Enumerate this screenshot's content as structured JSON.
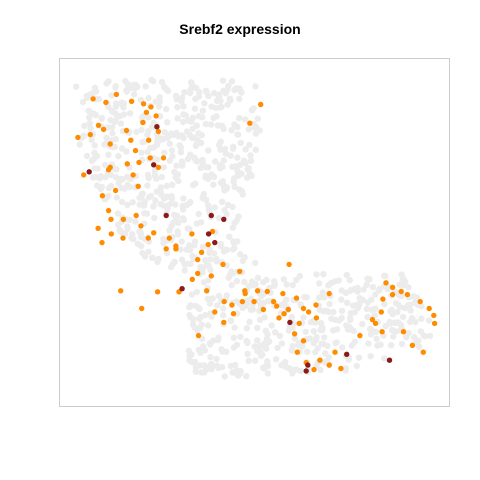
{
  "chart_data": {
    "type": "scatter",
    "title": "Srebf2 expression",
    "xlabel": "",
    "ylabel": "",
    "axes_visible": false,
    "xlim": [
      0,
      100
    ],
    "ylim": [
      0,
      100
    ],
    "grid": false,
    "legend": "none",
    "colors": {
      "background_cell": "#ececec",
      "expressed": "#ff8c00",
      "high": "#8b1a1a",
      "frame": "#cccccc"
    },
    "background_seed": 20240611,
    "background_count": 950,
    "background_regions": [
      [
        [
          3,
          94
        ],
        [
          50,
          94
        ],
        [
          52,
          83
        ],
        [
          46,
          46
        ],
        [
          53,
          38
        ],
        [
          88,
          38
        ],
        [
          96,
          28
        ],
        [
          95,
          18
        ],
        [
          75,
          10
        ],
        [
          40,
          8
        ],
        [
          33,
          10
        ],
        [
          33,
          38
        ],
        [
          22,
          42
        ],
        [
          13,
          52
        ],
        [
          5,
          74
        ]
      ]
    ],
    "series": [
      {
        "level": "expressed",
        "points": [
          [
            8.5,
            88.5
          ],
          [
            11.8,
            87.5
          ],
          [
            9.9,
            80.9
          ],
          [
            7.8,
            78.2
          ],
          [
            4.6,
            77.4
          ],
          [
            11.2,
            79.7
          ],
          [
            14.5,
            89.8
          ],
          [
            18.4,
            87.8
          ],
          [
            21.5,
            87.1
          ],
          [
            23.4,
            86.2
          ],
          [
            22.2,
            84.6
          ],
          [
            24.7,
            83.6
          ],
          [
            21.3,
            81.7
          ],
          [
            25.3,
            79.1
          ],
          [
            22.8,
            76.6
          ],
          [
            17.1,
            79.4
          ],
          [
            18.2,
            76.6
          ],
          [
            19.4,
            73.6
          ],
          [
            20.3,
            70.2
          ],
          [
            17.3,
            69.8
          ],
          [
            23.2,
            71.5
          ],
          [
            26.6,
            71.5
          ],
          [
            25.3,
            68.8
          ],
          [
            18.8,
            66.6
          ],
          [
            12.9,
            68.8
          ],
          [
            6.1,
            66.6
          ],
          [
            12.5,
            68.1
          ],
          [
            20.1,
            63.3
          ],
          [
            14.3,
            62.1
          ],
          [
            10.9,
            60.6
          ],
          [
            12.5,
            56.3
          ],
          [
            13.1,
            53.8
          ],
          [
            16.3,
            53.8
          ],
          [
            19.6,
            54.9
          ],
          [
            20.8,
            51.9
          ],
          [
            16.2,
            48.4
          ],
          [
            9.8,
            51.2
          ],
          [
            13.2,
            49.6
          ],
          [
            10.8,
            47.1
          ],
          [
            22.7,
            48.4
          ],
          [
            24.1,
            49.9
          ],
          [
            27.3,
            45.3
          ],
          [
            29.8,
            46.1
          ],
          [
            28.1,
            48.4
          ],
          [
            29.8,
            45.3
          ],
          [
            33.9,
            49.6
          ],
          [
            39.2,
            50.3
          ],
          [
            38.1,
            46.5
          ],
          [
            36.4,
            44.3
          ],
          [
            35.4,
            42.2
          ],
          [
            35.4,
            38.2
          ],
          [
            41.9,
            40.8
          ],
          [
            38.9,
            37.5
          ],
          [
            34.0,
            36.5
          ],
          [
            30.6,
            32.9
          ],
          [
            37.7,
            33.2
          ],
          [
            39.8,
            27.1
          ],
          [
            42.2,
            30.1
          ],
          [
            44.2,
            29.1
          ],
          [
            46.9,
            30.1
          ],
          [
            47.5,
            33.2
          ],
          [
            46.2,
            38.8
          ],
          [
            50.8,
            33.2
          ],
          [
            49.9,
            30.1
          ],
          [
            53.3,
            33.0
          ],
          [
            54.9,
            30.1
          ],
          [
            55.7,
            28.8
          ],
          [
            57.6,
            26.6
          ],
          [
            58.7,
            27.8
          ],
          [
            56.3,
            25.4
          ],
          [
            60.8,
            31.1
          ],
          [
            57.3,
            32.4
          ],
          [
            62.6,
            28.1
          ],
          [
            63.9,
            27.1
          ],
          [
            65.8,
            29.1
          ],
          [
            65.9,
            25.4
          ],
          [
            61.5,
            23.8
          ],
          [
            60.3,
            20.8
          ],
          [
            62.6,
            18.8
          ],
          [
            61.0,
            15.5
          ],
          [
            63.3,
            12.5
          ],
          [
            65.3,
            10.5
          ],
          [
            66.8,
            13.2
          ],
          [
            70.7,
            15.5
          ],
          [
            69.2,
            11.8
          ],
          [
            72.2,
            10.8
          ],
          [
            77.1,
            20.3
          ],
          [
            82.8,
            21.4
          ],
          [
            81.1,
            23.8
          ],
          [
            80.3,
            24.9
          ],
          [
            82.6,
            27.1
          ],
          [
            83.0,
            30.8
          ],
          [
            85.5,
            32.1
          ],
          [
            83.8,
            35.5
          ],
          [
            85.5,
            34.2
          ],
          [
            87.7,
            33.0
          ],
          [
            89.3,
            32.1
          ],
          [
            92.6,
            30.1
          ],
          [
            94.9,
            28.1
          ],
          [
            96.1,
            26.1
          ],
          [
            96.3,
            23.8
          ],
          [
            88.3,
            21.4
          ],
          [
            90.6,
            17.5
          ],
          [
            93.4,
            15.5
          ],
          [
            69.2,
            32.4
          ],
          [
            58.9,
            40.8
          ],
          [
            47.6,
            32.4
          ],
          [
            52.3,
            27.8
          ],
          [
            44.6,
            26.6
          ],
          [
            42.1,
            24.1
          ],
          [
            35.6,
            20.3
          ],
          [
            25.1,
            32.9
          ],
          [
            21.0,
            28.1
          ],
          [
            15.6,
            33.2
          ],
          [
            12.9,
            75.5
          ],
          [
            48.8,
            81.5
          ],
          [
            51.6,
            86.9
          ]
        ]
      },
      {
        "level": "high",
        "points": [
          [
            7.5,
            67.5
          ],
          [
            24.9,
            80.5
          ],
          [
            24.1,
            69.5
          ],
          [
            27.3,
            54.9
          ],
          [
            38.9,
            54.9
          ],
          [
            42.1,
            53.8
          ],
          [
            38.2,
            49.6
          ],
          [
            39.8,
            47.1
          ],
          [
            31.4,
            33.8
          ],
          [
            59.1,
            24.1
          ],
          [
            63.7,
            11.8
          ],
          [
            63.3,
            10.1
          ],
          [
            73.7,
            14.9
          ],
          [
            84.7,
            13.2
          ]
        ]
      }
    ]
  }
}
